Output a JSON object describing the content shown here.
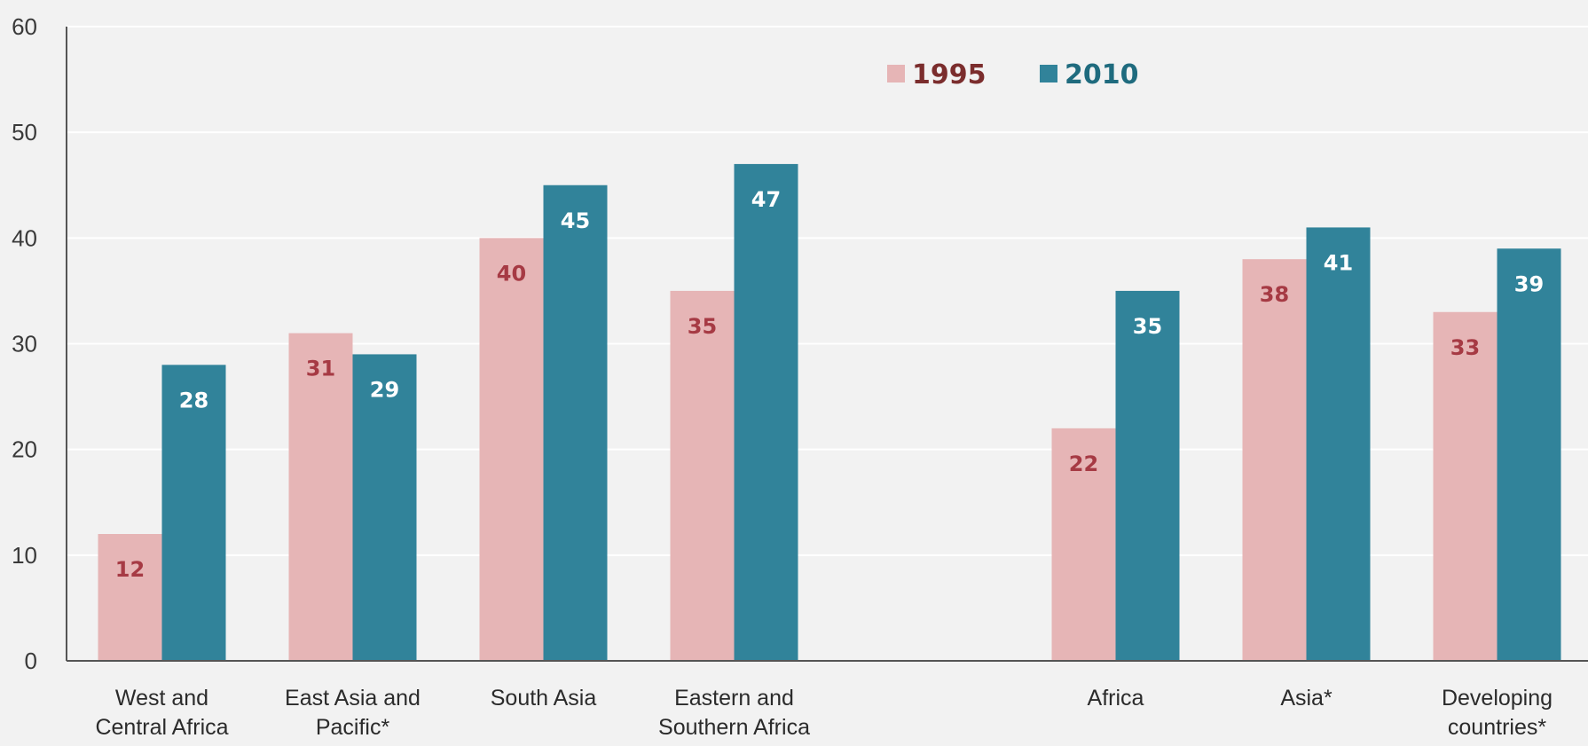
{
  "chart_data": {
    "type": "bar",
    "categories": [
      [
        "West and",
        "Central Africa"
      ],
      [
        "East Asia and",
        "Pacific*"
      ],
      [
        "South Asia"
      ],
      [
        "Eastern and",
        "Southern Africa"
      ],
      [],
      [
        "Africa"
      ],
      [
        "Asia*"
      ],
      [
        "Developing",
        "countries*"
      ]
    ],
    "series": [
      {
        "name": "1995",
        "values": [
          12,
          31,
          40,
          35,
          null,
          22,
          38,
          33
        ]
      },
      {
        "name": "2010",
        "values": [
          28,
          29,
          45,
          47,
          null,
          35,
          41,
          39
        ]
      }
    ],
    "ylim": [
      0,
      60
    ],
    "yticks": [
      0,
      10,
      20,
      30,
      40,
      50,
      60
    ],
    "title": "",
    "xlabel": "",
    "ylabel": "",
    "grid": true,
    "legend": "top-right",
    "colors": {
      "series_1995": "#e6b5b6",
      "series_2010": "#31839a",
      "label_1995": "#a63a44",
      "label_2010": "#ffffff",
      "legend_1995_text": "#7b2d2d",
      "legend_2010_text": "#1f6b7e",
      "axis": "#555555",
      "grid": "#ffffff"
    }
  }
}
